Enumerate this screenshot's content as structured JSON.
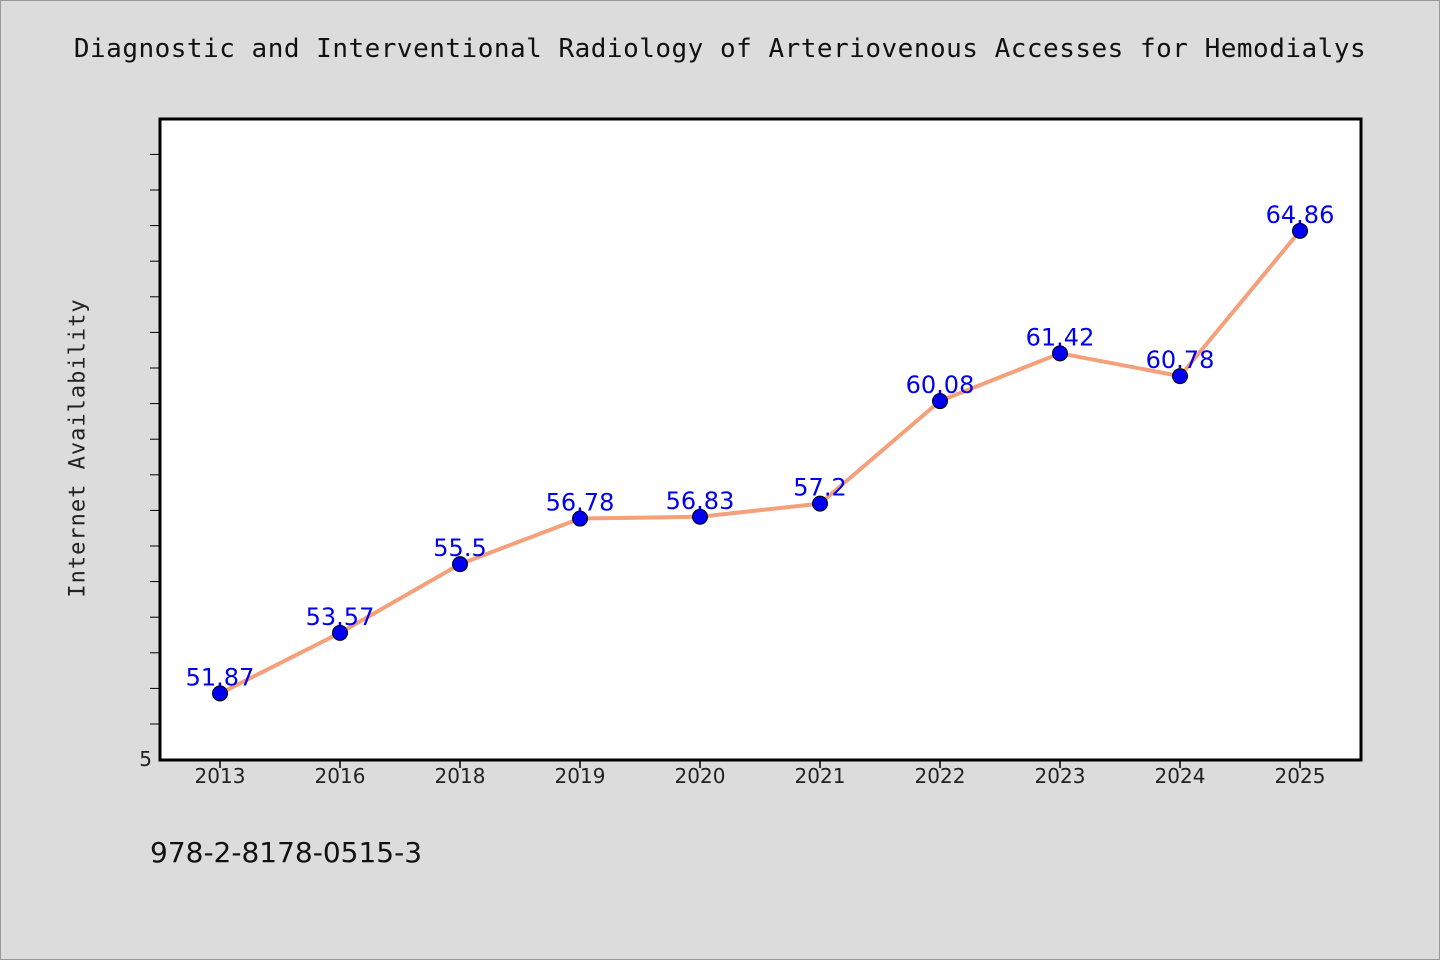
{
  "chart_data": {
    "type": "line",
    "title": "Diagnostic and Interventional Radiology of Arteriovenous Accesses for Hemodialys",
    "ylabel": "Internet Availability",
    "xlabel": "",
    "categories": [
      "2013",
      "2016",
      "2018",
      "2019",
      "2020",
      "2021",
      "2022",
      "2023",
      "2024",
      "2025"
    ],
    "values": [
      51.87,
      53.57,
      55.5,
      56.78,
      56.83,
      57.2,
      60.08,
      61.42,
      60.78,
      64.86
    ],
    "data_labels": [
      "51.87",
      "53.57",
      "55.5",
      "56.78",
      "56.83",
      "57.2",
      "60.08",
      "61.42",
      "60.78",
      "64.86"
    ],
    "y_tick_label": "5",
    "ylim": [
      50,
      68
    ],
    "grid": false,
    "legend": "none",
    "colors": {
      "line": "#f4a07a",
      "marker": "#0000ee",
      "label": "#0000ee",
      "axes": "#000000"
    }
  },
  "footer": {
    "isbn": "978-2-8178-0515-3"
  }
}
